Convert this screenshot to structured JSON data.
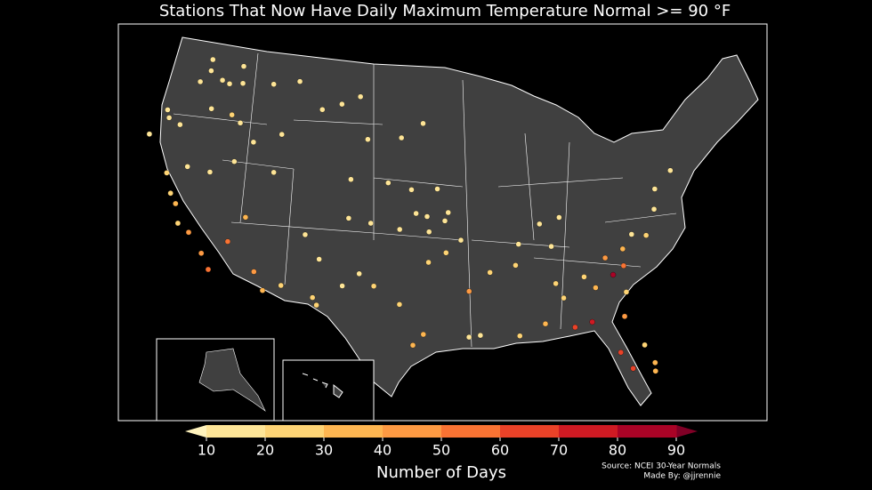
{
  "map": {
    "title": "Stations That Now Have Daily Maximum Temperature Normal >= 90 °F",
    "colorbar": {
      "label": "Number of Days",
      "ticks": [
        10,
        20,
        30,
        40,
        50,
        60,
        70,
        80,
        90
      ],
      "colors": [
        "#fee597",
        "#fed475",
        "#feb651",
        "#fd9a43",
        "#f97333",
        "#ea4228",
        "#cf1a23",
        "#a90326"
      ],
      "under": "#fff3bd",
      "over": "#800026"
    },
    "source": "Source: NCEI 30-Year Normals",
    "credit": "Made By: @jjrennie",
    "stations": [
      [
        -120.5,
        46.6,
        15
      ],
      [
        -119.1,
        46.2,
        18
      ],
      [
        -117.4,
        47.6,
        12
      ],
      [
        -118.3,
        46.1,
        14
      ],
      [
        -121.2,
        45.6,
        12
      ],
      [
        -122.9,
        42.4,
        16
      ],
      [
        -121.7,
        42.2,
        11
      ],
      [
        -117.0,
        46.4,
        15
      ],
      [
        -120.7,
        47.4,
        10
      ],
      [
        -123.3,
        42.9,
        12
      ],
      [
        -119.3,
        44.0,
        11
      ],
      [
        -117.2,
        44.0,
        20
      ],
      [
        -116.2,
        43.6,
        18
      ],
      [
        -114.5,
        42.5,
        13
      ],
      [
        -112.0,
        43.5,
        11
      ],
      [
        -108.5,
        45.8,
        14
      ],
      [
        -106.6,
        46.4,
        16
      ],
      [
        -104.8,
        47.1,
        12
      ],
      [
        -111.3,
        47.5,
        10
      ],
      [
        -113.9,
        46.9,
        11
      ],
      [
        -124.1,
        40.8,
        11
      ],
      [
        -121.4,
        38.6,
        25
      ],
      [
        -119.8,
        36.7,
        30
      ],
      [
        -118.0,
        35.0,
        45
      ],
      [
        -115.6,
        32.8,
        55
      ],
      [
        -116.5,
        33.8,
        40
      ],
      [
        -119.8,
        39.5,
        15
      ],
      [
        -117.7,
        39.6,
        14
      ],
      [
        -115.8,
        40.8,
        12
      ],
      [
        -114.6,
        35.1,
        50
      ],
      [
        -119.1,
        35.4,
        28
      ],
      [
        -120.5,
        37.3,
        26
      ],
      [
        -112.0,
        40.7,
        14
      ],
      [
        -113.6,
        37.1,
        30
      ],
      [
        -111.9,
        33.4,
        45
      ],
      [
        -110.9,
        32.2,
        35
      ],
      [
        -109.5,
        32.8,
        25
      ],
      [
        -106.7,
        35.1,
        13
      ],
      [
        -104.5,
        33.4,
        18
      ],
      [
        -106.8,
        32.3,
        22
      ],
      [
        -108.2,
        36.7,
        12
      ],
      [
        -103.2,
        34.4,
        11
      ],
      [
        -104.8,
        41.1,
        10
      ],
      [
        -103.6,
        44.1,
        12
      ],
      [
        -100.3,
        44.4,
        13
      ],
      [
        -98.2,
        45.5,
        10
      ],
      [
        -101.3,
        41.1,
        12
      ],
      [
        -99.1,
        40.7,
        11
      ],
      [
        -104.6,
        38.3,
        14
      ],
      [
        -102.6,
        38.1,
        16
      ],
      [
        -100.0,
        37.8,
        17
      ],
      [
        -97.4,
        37.7,
        19
      ],
      [
        -98.6,
        39.0,
        15
      ],
      [
        -96.7,
        40.8,
        11
      ],
      [
        -95.7,
        39.1,
        14
      ],
      [
        -97.6,
        38.8,
        18
      ],
      [
        -95.9,
        36.2,
        25
      ],
      [
        -94.6,
        37.1,
        15
      ],
      [
        -96.0,
        38.5,
        12
      ],
      [
        -98.5,
        29.5,
        30
      ],
      [
        -97.7,
        30.3,
        32
      ],
      [
        -101.9,
        33.6,
        20
      ],
      [
        -99.7,
        32.4,
        28
      ],
      [
        -106.4,
        31.8,
        25
      ],
      [
        -94.1,
        30.1,
        15
      ],
      [
        -90.1,
        30.0,
        22
      ],
      [
        -93.2,
        30.2,
        18
      ],
      [
        -97.4,
        35.5,
        20
      ],
      [
        -92.2,
        34.7,
        25
      ],
      [
        -94.0,
        33.4,
        45
      ],
      [
        -90.0,
        35.1,
        20
      ],
      [
        -86.8,
        36.2,
        12
      ],
      [
        -84.4,
        33.7,
        25
      ],
      [
        -86.8,
        33.5,
        25
      ],
      [
        -81.0,
        34.0,
        50
      ],
      [
        -82.4,
        34.8,
        40
      ],
      [
        -80.8,
        35.2,
        30
      ],
      [
        -78.6,
        35.8,
        20
      ],
      [
        -77.4,
        37.5,
        12
      ],
      [
        -79.8,
        36.1,
        15
      ],
      [
        -81.7,
        30.4,
        45
      ],
      [
        -82.5,
        27.9,
        60
      ],
      [
        -80.2,
        26.1,
        35
      ],
      [
        -81.8,
        26.6,
        65
      ],
      [
        -85.7,
        30.2,
        60
      ],
      [
        -84.3,
        30.4,
        70
      ],
      [
        -80.1,
        26.7,
        30
      ],
      [
        -80.6,
        28.1,
        25
      ],
      [
        -83.6,
        32.8,
        35
      ],
      [
        -86.3,
        32.4,
        25
      ],
      [
        -88.0,
        30.7,
        30
      ],
      [
        -81.2,
        32.1,
        20
      ],
      [
        -82.0,
        33.5,
        80
      ],
      [
        -76.9,
        38.9,
        12
      ],
      [
        -75.1,
        39.9,
        10
      ],
      [
        -85.8,
        38.2,
        13
      ],
      [
        -87.6,
        37.9,
        16
      ],
      [
        -89.6,
        36.6,
        18
      ]
    ]
  }
}
